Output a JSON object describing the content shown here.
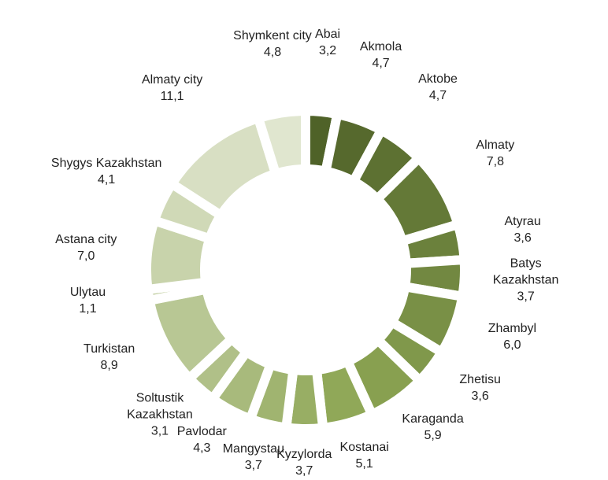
{
  "chart_data": {
    "type": "donut",
    "categories": [
      "Abai",
      "Akmola",
      "Aktobe",
      "Almaty",
      "Atyrau",
      "Batys Kazakhstan",
      "Zhambyl",
      "Zhetisu",
      "Karaganda",
      "Kostanai",
      "Kyzylorda",
      "Mangystau",
      "Pavlodar",
      "Soltustik\nKazakhstan",
      "Turkistan",
      "Ulytau",
      "Astana city",
      "Shygys Kazakhstan",
      "Almaty city",
      "Shymkent city"
    ],
    "values": [
      3.2,
      4.7,
      4.7,
      7.8,
      3.6,
      3.7,
      6.0,
      3.6,
      5.9,
      5.1,
      3.7,
      3.7,
      4.3,
      3.1,
      8.9,
      1.1,
      7.0,
      4.1,
      11.1,
      4.8
    ],
    "value_labels": [
      "3,2",
      "4,7",
      "4,7",
      "7,8",
      "3,6",
      "3,7",
      "6,0",
      "3,6",
      "5,9",
      "5,1",
      "3,7",
      "3,7",
      "4,3",
      "3,1",
      "8,9",
      "1,1",
      "7,0",
      "4,1",
      "11,1",
      "4,8"
    ],
    "colors": [
      "#4f6228",
      "#56692d",
      "#5d7132",
      "#647937",
      "#6b813c",
      "#728841",
      "#799046",
      "#80984b",
      "#88a050",
      "#90a858",
      "#98ae64",
      "#a0b470",
      "#a8ba7c",
      "#b0c088",
      "#b8c794",
      "#c0cd9f",
      "#c8d3ab",
      "#d0d9b7",
      "#d8dfc3",
      "#e0e6cf"
    ]
  }
}
